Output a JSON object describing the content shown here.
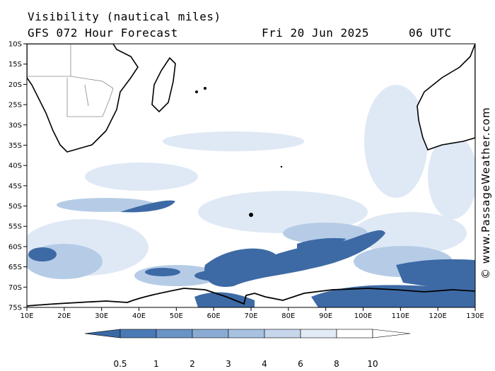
{
  "header": {
    "title": "Visibility (nautical miles)",
    "model": "GFS 072 Hour Forecast",
    "date": "Fri 20 Jun 2025",
    "time": "06 UTC"
  },
  "credit": "© www.PassageWeather.com",
  "axes": {
    "lat_labels": [
      "10S",
      "15S",
      "20S",
      "25S",
      "30S",
      "35S",
      "40S",
      "45S",
      "50S",
      "55S",
      "60S",
      "65S",
      "70S",
      "75S"
    ],
    "lon_labels": [
      "10E",
      "20E",
      "30E",
      "40E",
      "50E",
      "60E",
      "70E",
      "80E",
      "90E",
      "100E",
      "110E",
      "120E",
      "130E"
    ]
  },
  "legend": {
    "labels": [
      "0.5",
      "1",
      "2",
      "3",
      "4",
      "6",
      "8",
      "10"
    ],
    "colors": [
      "#3a6aa6",
      "#4a7ab5",
      "#6a93c6",
      "#8aacd4",
      "#a8c2e0",
      "#c6d7ec",
      "#e2ebf6",
      "#ffffff"
    ]
  },
  "colors": {
    "land_outline": "#000000",
    "border": "#888888",
    "low_vis": "#3d6aa5"
  }
}
